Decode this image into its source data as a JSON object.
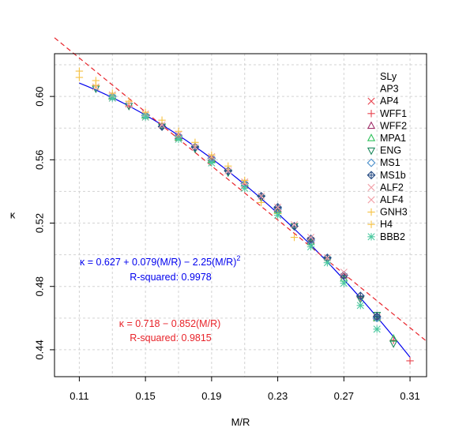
{
  "chart_data": {
    "type": "scatter",
    "xlabel": "M/R",
    "ylabel": "κ",
    "xlim": [
      0.095,
      0.32
    ],
    "ylim": [
      0.423,
      0.627
    ],
    "x_ticks": [
      0.11,
      0.15,
      0.19,
      0.23,
      0.27,
      0.31
    ],
    "x_tick_labels": [
      "0.11",
      "0.15",
      "0.19",
      "0.23",
      "0.27",
      "0.31"
    ],
    "y_ticks": [
      0.44,
      0.48,
      0.52,
      0.56,
      0.6
    ],
    "y_tick_labels": [
      "0.44",
      "0.48",
      "0.52",
      "0.56",
      "0.60"
    ],
    "grid": true,
    "legend_position": "top-right",
    "series": [
      {
        "name": "SLy",
        "marker": "none",
        "color": "#000000",
        "points": []
      },
      {
        "name": "AP3",
        "marker": "none",
        "color": "#000000",
        "points": []
      },
      {
        "name": "AP4",
        "marker": "x",
        "color": "#e8434e",
        "points": [
          [
            0.13,
            0.599
          ],
          [
            0.15,
            0.587
          ],
          [
            0.17,
            0.574
          ],
          [
            0.19,
            0.56
          ],
          [
            0.21,
            0.544
          ],
          [
            0.23,
            0.528
          ],
          [
            0.25,
            0.509
          ],
          [
            0.27,
            0.486
          ],
          [
            0.29,
            0.46
          ]
        ]
      },
      {
        "name": "WFF1",
        "marker": "plus",
        "color": "#e8434e",
        "points": [
          [
            0.14,
            0.594
          ],
          [
            0.16,
            0.581
          ],
          [
            0.18,
            0.568
          ],
          [
            0.2,
            0.553
          ],
          [
            0.22,
            0.537
          ],
          [
            0.24,
            0.518
          ],
          [
            0.26,
            0.497
          ],
          [
            0.28,
            0.473
          ],
          [
            0.3,
            0.446
          ],
          [
            0.31,
            0.433
          ]
        ]
      },
      {
        "name": "WFF2",
        "marker": "triangle-up",
        "color": "#a0306a",
        "points": [
          [
            0.13,
            0.6
          ],
          [
            0.15,
            0.588
          ],
          [
            0.17,
            0.575
          ],
          [
            0.19,
            0.561
          ],
          [
            0.21,
            0.545
          ],
          [
            0.23,
            0.529
          ],
          [
            0.25,
            0.509
          ],
          [
            0.27,
            0.487
          ],
          [
            0.29,
            0.461
          ]
        ]
      },
      {
        "name": "MPA1",
        "marker": "triangle-up",
        "color": "#2fc25b",
        "points": [
          [
            0.13,
            0.6
          ],
          [
            0.15,
            0.588
          ],
          [
            0.17,
            0.574
          ],
          [
            0.19,
            0.56
          ],
          [
            0.21,
            0.545
          ],
          [
            0.23,
            0.528
          ],
          [
            0.25,
            0.508
          ],
          [
            0.27,
            0.485
          ],
          [
            0.29,
            0.46
          ],
          [
            0.3,
            0.447
          ]
        ]
      },
      {
        "name": "ENG",
        "marker": "triangle-down",
        "color": "#1f8a5e",
        "points": [
          [
            0.12,
            0.605
          ],
          [
            0.14,
            0.594
          ],
          [
            0.16,
            0.581
          ],
          [
            0.18,
            0.567
          ],
          [
            0.2,
            0.552
          ],
          [
            0.22,
            0.536
          ],
          [
            0.24,
            0.518
          ],
          [
            0.26,
            0.497
          ],
          [
            0.28,
            0.472
          ],
          [
            0.29,
            0.462
          ],
          [
            0.3,
            0.444
          ]
        ]
      },
      {
        "name": "MS1",
        "marker": "diamond",
        "color": "#4a8fcb",
        "points": [
          [
            0.13,
            0.6
          ],
          [
            0.15,
            0.588
          ],
          [
            0.17,
            0.575
          ],
          [
            0.19,
            0.561
          ],
          [
            0.21,
            0.545
          ],
          [
            0.23,
            0.529
          ],
          [
            0.25,
            0.509
          ],
          [
            0.26,
            0.498
          ],
          [
            0.27,
            0.487
          ],
          [
            0.29,
            0.46
          ]
        ]
      },
      {
        "name": "MS1b",
        "marker": "diamond-plus",
        "color": "#2b4f86",
        "points": [
          [
            0.16,
            0.581
          ],
          [
            0.18,
            0.568
          ],
          [
            0.2,
            0.553
          ],
          [
            0.22,
            0.537
          ],
          [
            0.23,
            0.53
          ],
          [
            0.24,
            0.518
          ],
          [
            0.25,
            0.51
          ],
          [
            0.26,
            0.498
          ],
          [
            0.27,
            0.487
          ],
          [
            0.28,
            0.474
          ],
          [
            0.29,
            0.461
          ]
        ]
      },
      {
        "name": "ALF2",
        "marker": "x",
        "color": "#f2a0a8",
        "points": [
          [
            0.12,
            0.606
          ],
          [
            0.14,
            0.595
          ],
          [
            0.16,
            0.582
          ],
          [
            0.18,
            0.568
          ],
          [
            0.2,
            0.553
          ],
          [
            0.22,
            0.537
          ],
          [
            0.24,
            0.519
          ],
          [
            0.26,
            0.498
          ]
        ]
      },
      {
        "name": "ALF4",
        "marker": "x",
        "color": "#f2a0a8",
        "points": [
          [
            0.13,
            0.601
          ],
          [
            0.15,
            0.589
          ],
          [
            0.17,
            0.576
          ],
          [
            0.19,
            0.562
          ],
          [
            0.21,
            0.546
          ],
          [
            0.23,
            0.53
          ],
          [
            0.25,
            0.511
          ],
          [
            0.27,
            0.489
          ]
        ]
      },
      {
        "name": "GNH3",
        "marker": "plus",
        "color": "#f6c244",
        "points": [
          [
            0.11,
            0.612
          ],
          [
            0.12,
            0.607
          ],
          [
            0.13,
            0.602
          ],
          [
            0.15,
            0.59
          ],
          [
            0.17,
            0.578
          ],
          [
            0.19,
            0.563
          ],
          [
            0.21,
            0.547
          ],
          [
            0.23,
            0.526
          ],
          [
            0.24,
            0.511
          ]
        ]
      },
      {
        "name": "H4",
        "marker": "plus",
        "color": "#f6c244",
        "points": [
          [
            0.11,
            0.616
          ],
          [
            0.12,
            0.61
          ],
          [
            0.14,
            0.597
          ],
          [
            0.16,
            0.585
          ],
          [
            0.18,
            0.571
          ],
          [
            0.2,
            0.556
          ],
          [
            0.22,
            0.533
          ]
        ]
      },
      {
        "name": "BBB2",
        "marker": "asterisk",
        "color": "#4cc9a0",
        "points": [
          [
            0.13,
            0.599
          ],
          [
            0.15,
            0.587
          ],
          [
            0.17,
            0.573
          ],
          [
            0.19,
            0.558
          ],
          [
            0.21,
            0.542
          ],
          [
            0.23,
            0.525
          ],
          [
            0.25,
            0.505
          ],
          [
            0.26,
            0.495
          ],
          [
            0.27,
            0.482
          ],
          [
            0.28,
            0.468
          ],
          [
            0.29,
            0.453
          ]
        ]
      }
    ],
    "fits": [
      {
        "label": "quadratic",
        "color": "#0000ee",
        "style": "solid",
        "coefficients": [
          0.627,
          0.079,
          -2.25
        ],
        "x_range": [
          0.11,
          0.31
        ]
      },
      {
        "label": "linear",
        "color": "#e8232a",
        "style": "dashed",
        "coefficients": [
          0.718,
          -0.852
        ],
        "x_range": [
          0.095,
          0.32
        ]
      }
    ],
    "annotations": [
      {
        "id": "quad_eq",
        "text": "κ = 0.627 + 0.079(M/R) − 2.25(M/R)",
        "sup": "2",
        "color": "#0000ee"
      },
      {
        "id": "quad_r2",
        "text": "R-squared: 0.9978",
        "color": "#0000ee"
      },
      {
        "id": "lin_eq",
        "text": "κ = 0.718 − 0.852(M/R)",
        "color": "#e8232a"
      },
      {
        "id": "lin_r2",
        "text": "R-squared: 0.9815",
        "color": "#e8232a"
      }
    ]
  }
}
